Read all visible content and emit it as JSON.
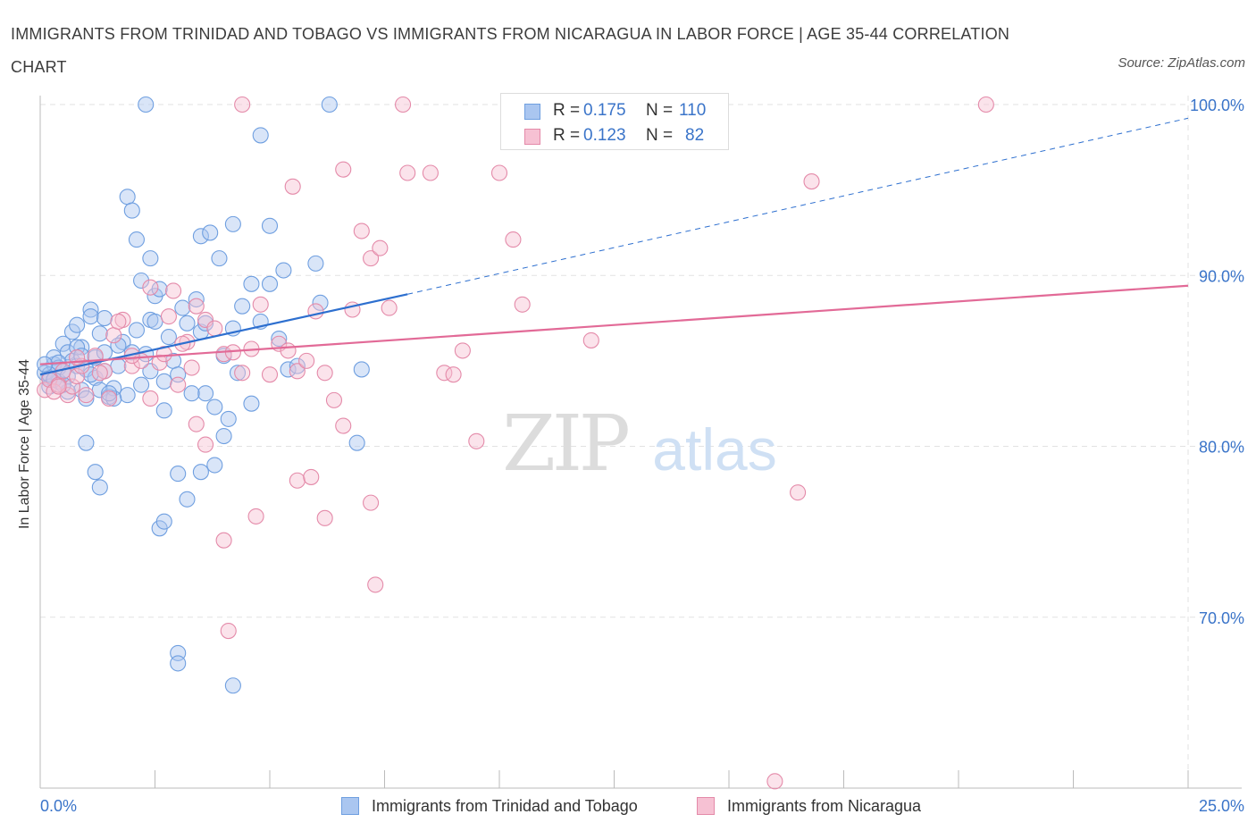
{
  "chart_data": {
    "type": "scatter",
    "title": "IMMIGRANTS FROM TRINIDAD AND TOBAGO VS IMMIGRANTS FROM NICARAGUA IN LABOR FORCE | AGE 35-44 CORRELATION CHART",
    "source": "Source: ZipAtlas.com",
    "ylabel": "In Labor Force | Age 35-44",
    "xlabel": "",
    "xlim": [
      0,
      25
    ],
    "ylim": [
      60,
      100
    ],
    "x_tick_labels": [
      "0.0%",
      "25.0%"
    ],
    "y_ticks": [
      70,
      80,
      90,
      100
    ],
    "y_tick_labels": [
      "70.0%",
      "80.0%",
      "90.0%",
      "100.0%"
    ],
    "grid": true,
    "watermark": {
      "zip": "ZIP",
      "atlas": "atlas"
    },
    "legend": {
      "placement": "top-center",
      "rows": [
        {
          "r_label": "R =",
          "r_value": "0.175",
          "n_label": "N =",
          "n_value": "110"
        },
        {
          "r_label": "R =",
          "r_value": "0.123",
          "n_label": "N =",
          "n_value": "82"
        }
      ]
    },
    "series": [
      {
        "name": "Immigrants from Trinidad and Tobago",
        "color": "#6f9fe0",
        "fill": "#aac6f0",
        "trend": {
          "x0": 0,
          "y0": 84.2,
          "x1": 8.0,
          "y1": 88.9,
          "dash_to_x": 25,
          "dash_to_y": 99.2,
          "color": "#2d6fcf"
        },
        "points": [
          [
            0.1,
            84.3
          ],
          [
            0.2,
            84.0
          ],
          [
            0.2,
            83.5
          ],
          [
            0.3,
            84.8
          ],
          [
            0.3,
            85.2
          ],
          [
            0.4,
            84.6
          ],
          [
            0.4,
            83.8
          ],
          [
            0.5,
            86.0
          ],
          [
            0.5,
            84.4
          ],
          [
            0.6,
            85.5
          ],
          [
            0.6,
            84.1
          ],
          [
            0.7,
            86.7
          ],
          [
            0.7,
            85.0
          ],
          [
            0.8,
            84.7
          ],
          [
            0.8,
            87.1
          ],
          [
            0.9,
            85.8
          ],
          [
            0.9,
            83.3
          ],
          [
            1.0,
            84.5
          ],
          [
            1.0,
            82.8
          ],
          [
            1.1,
            88.0
          ],
          [
            1.1,
            87.6
          ],
          [
            1.2,
            85.2
          ],
          [
            1.2,
            84.0
          ],
          [
            1.3,
            86.6
          ],
          [
            1.3,
            83.3
          ],
          [
            1.4,
            85.5
          ],
          [
            1.4,
            84.4
          ],
          [
            1.5,
            82.9
          ],
          [
            1.6,
            83.4
          ],
          [
            1.7,
            84.7
          ],
          [
            1.8,
            86.1
          ],
          [
            1.9,
            83.0
          ],
          [
            2.0,
            85.5
          ],
          [
            2.1,
            86.8
          ],
          [
            2.2,
            89.7
          ],
          [
            2.3,
            85.4
          ],
          [
            2.4,
            87.4
          ],
          [
            2.5,
            88.8
          ],
          [
            2.6,
            89.2
          ],
          [
            2.7,
            83.8
          ],
          [
            2.8,
            86.4
          ],
          [
            2.9,
            85.0
          ],
          [
            3.0,
            84.2
          ],
          [
            3.2,
            87.2
          ],
          [
            3.4,
            88.6
          ],
          [
            3.5,
            86.7
          ],
          [
            3.6,
            87.2
          ],
          [
            3.8,
            82.3
          ],
          [
            4.0,
            85.3
          ],
          [
            4.2,
            86.9
          ],
          [
            4.4,
            88.2
          ],
          [
            4.6,
            82.5
          ],
          [
            4.8,
            87.3
          ],
          [
            5.0,
            89.5
          ],
          [
            5.2,
            86.3
          ],
          [
            5.4,
            84.5
          ],
          [
            5.6,
            84.7
          ],
          [
            0.2,
            84.2
          ],
          [
            0.3,
            83.9
          ],
          [
            0.4,
            84.9
          ],
          [
            1.0,
            80.2
          ],
          [
            1.2,
            78.5
          ],
          [
            1.3,
            77.6
          ],
          [
            1.9,
            94.6
          ],
          [
            2.0,
            93.8
          ],
          [
            2.1,
            92.1
          ],
          [
            2.4,
            91.0
          ],
          [
            2.6,
            75.2
          ],
          [
            2.7,
            75.6
          ],
          [
            3.0,
            78.4
          ],
          [
            3.2,
            76.9
          ],
          [
            3.5,
            78.5
          ],
          [
            3.6,
            83.1
          ],
          [
            3.8,
            78.9
          ],
          [
            4.0,
            80.6
          ],
          [
            4.1,
            81.6
          ],
          [
            4.3,
            84.3
          ],
          [
            4.6,
            89.5
          ],
          [
            5.0,
            92.9
          ],
          [
            3.0,
            67.9
          ],
          [
            3.0,
            67.3
          ],
          [
            3.5,
            92.3
          ],
          [
            3.7,
            92.5
          ],
          [
            3.9,
            91.0
          ],
          [
            4.2,
            93.0
          ],
          [
            2.3,
            100.0
          ],
          [
            6.3,
            100.0
          ],
          [
            4.8,
            98.2
          ],
          [
            5.3,
            90.3
          ],
          [
            6.0,
            90.7
          ],
          [
            6.1,
            88.4
          ],
          [
            6.9,
            80.2
          ],
          [
            7.0,
            84.5
          ],
          [
            4.2,
            66.0
          ],
          [
            3.3,
            83.1
          ],
          [
            2.7,
            82.1
          ],
          [
            1.6,
            82.8
          ],
          [
            1.5,
            83.1
          ],
          [
            0.8,
            85.8
          ],
          [
            0.9,
            85.3
          ],
          [
            1.7,
            85.9
          ],
          [
            2.2,
            83.6
          ],
          [
            2.4,
            84.4
          ],
          [
            2.5,
            87.3
          ],
          [
            1.1,
            84.2
          ],
          [
            0.6,
            83.2
          ],
          [
            0.5,
            83.6
          ],
          [
            0.1,
            84.8
          ],
          [
            1.4,
            87.5
          ],
          [
            3.1,
            88.1
          ]
        ]
      },
      {
        "name": "Immigrants from Nicaragua",
        "color": "#e48aa9",
        "fill": "#f6c1d3",
        "trend": {
          "x0": 0,
          "y0": 84.8,
          "x1": 25,
          "y1": 89.4,
          "color": "#e26a97"
        },
        "points": [
          [
            0.1,
            83.3
          ],
          [
            0.2,
            83.9
          ],
          [
            0.3,
            83.2
          ],
          [
            0.4,
            83.6
          ],
          [
            0.5,
            84.4
          ],
          [
            0.6,
            83.0
          ],
          [
            0.7,
            83.5
          ],
          [
            0.8,
            84.1
          ],
          [
            0.9,
            84.7
          ],
          [
            1.0,
            83.0
          ],
          [
            1.2,
            85.3
          ],
          [
            1.4,
            84.4
          ],
          [
            1.5,
            82.8
          ],
          [
            1.6,
            86.5
          ],
          [
            1.8,
            87.4
          ],
          [
            2.0,
            84.7
          ],
          [
            2.2,
            85.0
          ],
          [
            2.4,
            82.8
          ],
          [
            2.6,
            84.9
          ],
          [
            2.8,
            87.6
          ],
          [
            3.0,
            83.6
          ],
          [
            3.2,
            86.1
          ],
          [
            3.4,
            88.2
          ],
          [
            3.6,
            87.4
          ],
          [
            3.8,
            86.9
          ],
          [
            4.0,
            85.4
          ],
          [
            4.2,
            85.5
          ],
          [
            4.4,
            84.3
          ],
          [
            4.6,
            85.7
          ],
          [
            4.8,
            88.3
          ],
          [
            5.0,
            84.2
          ],
          [
            5.2,
            86.0
          ],
          [
            5.4,
            85.6
          ],
          [
            5.6,
            84.4
          ],
          [
            5.8,
            85.0
          ],
          [
            6.0,
            87.9
          ],
          [
            6.2,
            84.3
          ],
          [
            6.4,
            82.7
          ],
          [
            6.6,
            81.2
          ],
          [
            6.8,
            88.0
          ],
          [
            7.0,
            92.6
          ],
          [
            7.2,
            91.0
          ],
          [
            7.4,
            91.6
          ],
          [
            7.6,
            88.1
          ],
          [
            8.0,
            96.0
          ],
          [
            8.5,
            96.0
          ],
          [
            8.8,
            84.3
          ],
          [
            9.0,
            84.2
          ],
          [
            9.2,
            85.6
          ],
          [
            9.5,
            80.3
          ],
          [
            10.0,
            96.0
          ],
          [
            10.3,
            92.1
          ],
          [
            10.5,
            88.3
          ],
          [
            12.0,
            86.2
          ],
          [
            16.5,
            77.3
          ],
          [
            16.8,
            95.5
          ],
          [
            20.6,
            100.0
          ],
          [
            4.4,
            100.0
          ],
          [
            7.9,
            100.0
          ],
          [
            5.5,
            95.2
          ],
          [
            3.6,
            80.1
          ],
          [
            3.4,
            81.3
          ],
          [
            4.0,
            74.5
          ],
          [
            4.7,
            75.9
          ],
          [
            5.6,
            78.0
          ],
          [
            5.9,
            78.2
          ],
          [
            6.2,
            75.8
          ],
          [
            7.2,
            76.7
          ],
          [
            7.3,
            71.9
          ],
          [
            4.1,
            69.2
          ],
          [
            6.6,
            96.2
          ],
          [
            16.0,
            60.4
          ],
          [
            2.9,
            89.1
          ],
          [
            2.4,
            89.3
          ],
          [
            1.7,
            87.3
          ],
          [
            0.8,
            85.2
          ],
          [
            1.3,
            84.3
          ],
          [
            2.0,
            85.3
          ],
          [
            2.7,
            85.4
          ],
          [
            3.1,
            86.0
          ],
          [
            3.3,
            84.6
          ],
          [
            0.4,
            83.5
          ]
        ]
      }
    ]
  }
}
